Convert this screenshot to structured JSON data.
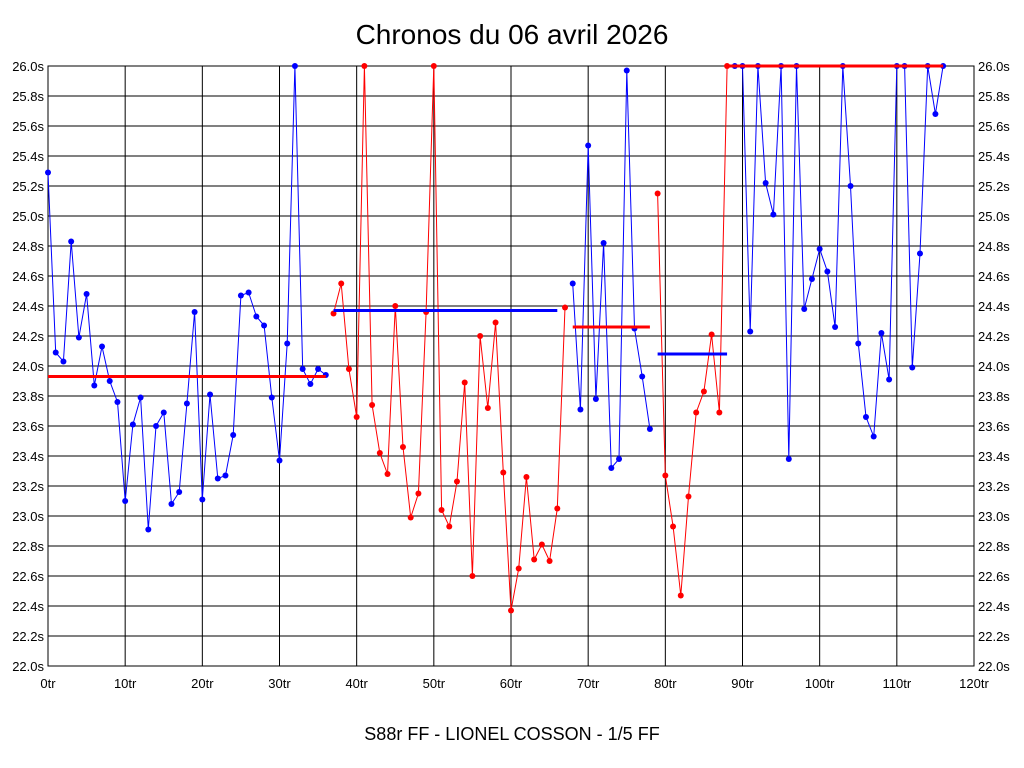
{
  "chart_data": {
    "type": "line",
    "title": "Chronos du 06 avril 2026",
    "subtitle": "S88r FF - LIONEL COSSON - 1/5 FF",
    "xlim": [
      0,
      120
    ],
    "ylim": [
      22.0,
      26.0
    ],
    "grid": true,
    "x_ticks": [
      "0tr",
      "10tr",
      "20tr",
      "30tr",
      "40tr",
      "50tr",
      "60tr",
      "70tr",
      "80tr",
      "90tr",
      "100tr",
      "110tr",
      "120tr"
    ],
    "y_ticks": [
      "22.0s",
      "22.2s",
      "22.4s",
      "22.6s",
      "22.8s",
      "23.0s",
      "23.2s",
      "23.4s",
      "23.6s",
      "23.8s",
      "24.0s",
      "24.2s",
      "24.4s",
      "24.6s",
      "24.8s",
      "25.0s",
      "25.2s",
      "25.4s",
      "25.6s",
      "25.8s",
      "26.0s"
    ],
    "series": [
      {
        "color": "#0000ff",
        "x": [
          0,
          1,
          2,
          3,
          4,
          5,
          6,
          7,
          8,
          9,
          10,
          11,
          12,
          13,
          14,
          15,
          16,
          17,
          18,
          19,
          20,
          21,
          22,
          23,
          24,
          25,
          26,
          27,
          28,
          29,
          30,
          31,
          32,
          33,
          34,
          35,
          36
        ],
        "y": [
          25.29,
          24.09,
          24.03,
          24.83,
          24.19,
          24.48,
          23.87,
          24.13,
          23.9,
          23.76,
          23.1,
          23.61,
          23.79,
          22.91,
          23.6,
          23.69,
          23.08,
          23.16,
          23.75,
          24.36,
          23.11,
          23.81,
          23.25,
          23.27,
          23.54,
          24.47,
          24.49,
          24.33,
          24.27,
          23.79,
          23.37,
          24.15,
          26.0,
          23.98,
          23.88,
          23.98,
          23.94
        ],
        "mean": 23.93
      },
      {
        "color": "#ff0000",
        "x": [
          37,
          38,
          39,
          40,
          41,
          42,
          43,
          44,
          45,
          46,
          47,
          48,
          49,
          50,
          51,
          52,
          53,
          54,
          55,
          56,
          57,
          58,
          59,
          60,
          61,
          62,
          63,
          64,
          65,
          66,
          67
        ],
        "y": [
          24.35,
          24.55,
          23.98,
          23.66,
          26.0,
          23.74,
          23.42,
          23.28,
          24.4,
          23.46,
          22.99,
          23.15,
          24.36,
          26.0,
          23.04,
          22.93,
          23.23,
          23.89,
          22.6,
          24.2,
          23.72,
          24.29,
          23.29,
          22.37,
          22.65,
          23.26,
          22.71,
          22.81,
          22.7,
          23.05,
          24.39
        ],
        "mean": 24.37
      },
      {
        "color": "#0000ff",
        "x": [
          68,
          69,
          70,
          71,
          72,
          73,
          74,
          75,
          76,
          77,
          78
        ],
        "y": [
          24.55,
          23.71,
          25.47,
          23.78,
          24.82,
          23.32,
          23.38,
          25.97,
          24.25,
          23.93,
          23.58
        ],
        "mean": 24.26
      },
      {
        "color": "#ff0000",
        "x": [
          79,
          80,
          81,
          82,
          83,
          84,
          85,
          86,
          87,
          88
        ],
        "y": [
          25.15,
          23.27,
          22.93,
          22.47,
          23.13,
          23.69,
          23.83,
          24.21,
          23.69,
          26.0
        ],
        "mean": 24.08
      },
      {
        "color": "#0000ff",
        "x": [
          89,
          90,
          91,
          92,
          93,
          94,
          95,
          96,
          97,
          98,
          99,
          100,
          101,
          102,
          103,
          104,
          105,
          106,
          107,
          108,
          109,
          110,
          111,
          112,
          113,
          114,
          115,
          116
        ],
        "y": [
          26.0,
          26.0,
          24.23,
          26.0,
          25.22,
          25.01,
          26.0,
          23.38,
          26.0,
          24.38,
          24.58,
          24.78,
          24.63,
          24.26,
          26.0,
          25.2,
          24.15,
          23.66,
          23.53,
          24.22,
          23.91,
          26.0,
          26.0,
          23.99,
          24.75,
          26.0,
          25.68,
          26.0
        ],
        "mean": 26.0
      }
    ],
    "mean_lines": [
      {
        "from": 0,
        "to": 36,
        "y": 23.93,
        "color": "#ff0000"
      },
      {
        "from": 37,
        "to": 66,
        "y": 24.37,
        "color": "#0000ff"
      },
      {
        "from": 68,
        "to": 78,
        "y": 24.26,
        "color": "#ff0000"
      },
      {
        "from": 79,
        "to": 88,
        "y": 24.08,
        "color": "#0000ff"
      },
      {
        "from": 88,
        "to": 116,
        "y": 26.0,
        "color": "#ff0000"
      }
    ]
  }
}
